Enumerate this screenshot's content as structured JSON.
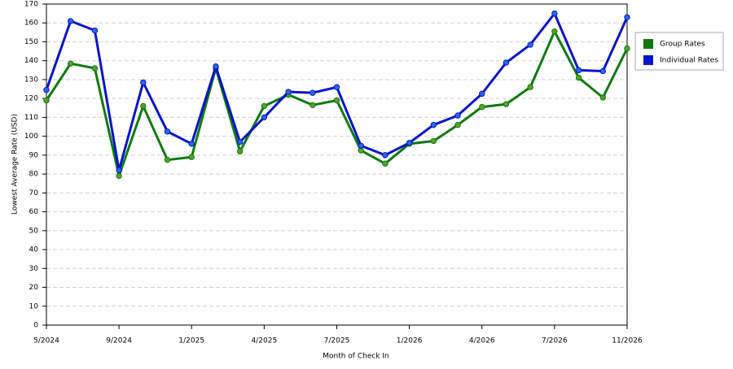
{
  "chart_data": {
    "type": "line",
    "x_label": "Month of Check In",
    "y_label": "Lowest Average Rate (USD)",
    "categories": [
      "5/2024",
      null,
      null,
      "9/2024",
      null,
      null,
      "1/2025",
      null,
      null,
      "4/2025",
      null,
      null,
      "7/2025",
      null,
      null,
      "1/2026",
      null,
      null,
      "4/2026",
      null,
      null,
      "7/2026",
      null,
      null,
      "11/2026"
    ],
    "series": [
      {
        "name": "Group Rates",
        "color": "#0f7a0f",
        "marker": "#5aa02c",
        "values": [
          119,
          138.5,
          136,
          79,
          116,
          87.5,
          89,
          136,
          92,
          116,
          122,
          116.5,
          119,
          92.5,
          85.5,
          96,
          97.5,
          106,
          115.5,
          117,
          126,
          155.5,
          131,
          120.5,
          146.5
        ]
      },
      {
        "name": "Individual Rates",
        "color": "#0a14c8",
        "marker": "#2a6ae0",
        "values": [
          124.5,
          161,
          156,
          82,
          128.5,
          102.5,
          96,
          137,
          97,
          110,
          123.5,
          123,
          126,
          95,
          90,
          96.5,
          106,
          111,
          122.5,
          139,
          148.5,
          165,
          135,
          134.5,
          163
        ]
      }
    ],
    "ylim": [
      0,
      170
    ],
    "yticks": [
      0,
      10,
      20,
      30,
      40,
      50,
      60,
      70,
      80,
      90,
      100,
      110,
      120,
      130,
      140,
      150,
      160,
      170
    ],
    "grid": true,
    "legend": "right"
  }
}
